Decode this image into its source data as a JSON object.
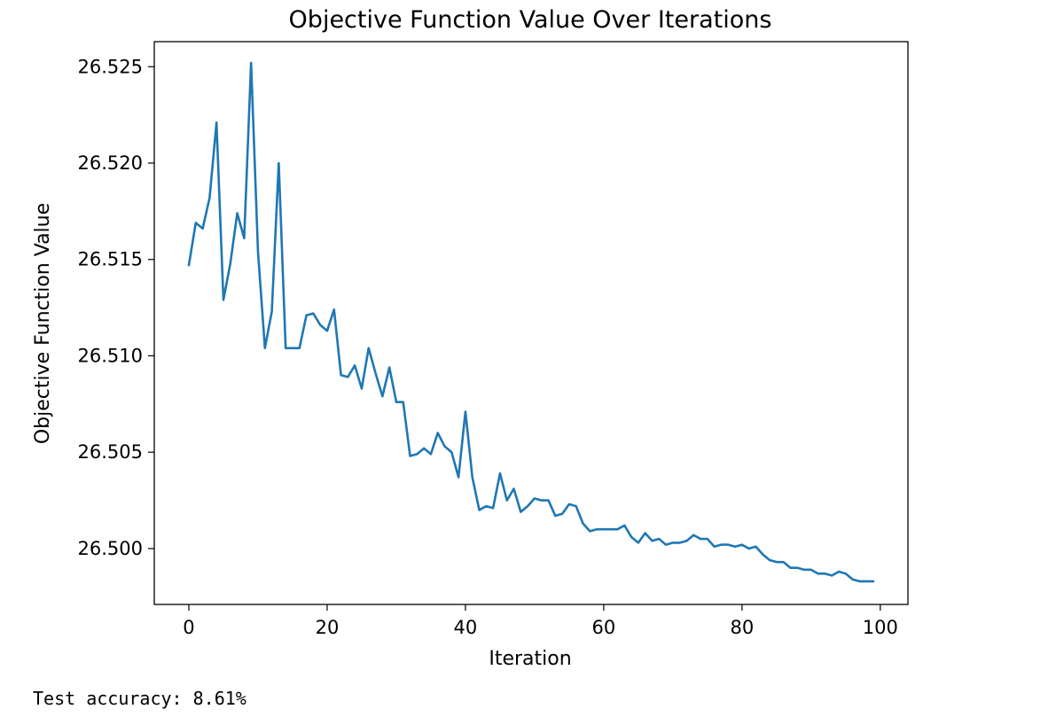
{
  "chart_data": {
    "type": "line",
    "title": "Objective Function Value Over Iterations",
    "xlabel": "Iteration",
    "ylabel": "Objective Function Value",
    "xlim": [
      -5,
      104
    ],
    "ylim": [
      26.4971,
      26.5263
    ],
    "xticks": [
      0,
      20,
      40,
      60,
      80,
      100
    ],
    "xtick_labels": [
      "0",
      "20",
      "40",
      "60",
      "80",
      "100"
    ],
    "yticks": [
      26.5,
      26.505,
      26.51,
      26.515,
      26.52,
      26.525
    ],
    "ytick_labels": [
      "26.500",
      "26.505",
      "26.510",
      "26.515",
      "26.520",
      "26.525"
    ],
    "grid": false,
    "line_color": "#1f77b4",
    "series": [
      {
        "x": [
          0,
          1,
          2,
          3,
          4,
          5,
          6,
          7,
          8,
          9,
          10,
          11,
          12,
          13,
          14,
          15,
          16,
          17,
          18,
          19,
          20,
          21,
          22,
          23,
          24,
          25,
          26,
          27,
          28,
          29,
          30,
          31,
          32,
          33,
          34,
          35,
          36,
          37,
          38,
          39,
          40,
          41,
          42,
          43,
          44,
          45,
          46,
          47,
          48,
          49,
          50,
          51,
          52,
          53,
          54,
          55,
          56,
          57,
          58,
          59,
          60,
          61,
          62,
          63,
          64,
          65,
          66,
          67,
          68,
          69,
          70,
          71,
          72,
          73,
          74,
          75,
          76,
          77,
          78,
          79,
          80,
          81,
          82,
          83,
          84,
          85,
          86,
          87,
          88,
          89,
          90,
          91,
          92,
          93,
          94,
          95,
          96,
          97,
          98,
          99
        ],
        "values": [
          26.5147,
          26.5169,
          26.5166,
          26.5182,
          26.5221,
          26.5129,
          26.5148,
          26.5174,
          26.5161,
          26.5252,
          26.5154,
          26.5104,
          26.5123,
          26.52,
          26.5104,
          26.5104,
          26.5104,
          26.5121,
          26.5122,
          26.5116,
          26.5113,
          26.5124,
          26.509,
          26.5089,
          26.5095,
          26.5083,
          26.5104,
          26.5091,
          26.5079,
          26.5094,
          26.5076,
          26.5076,
          26.5048,
          26.5049,
          26.5052,
          26.5049,
          26.506,
          26.5053,
          26.505,
          26.5037,
          26.5071,
          26.5037,
          26.502,
          26.5022,
          26.5021,
          26.5039,
          26.5025,
          26.5031,
          26.5019,
          26.5022,
          26.5026,
          26.5025,
          26.5025,
          26.5017,
          26.5018,
          26.5023,
          26.5022,
          26.5013,
          26.5009,
          26.501,
          26.501,
          26.501,
          26.501,
          26.5012,
          26.5006,
          26.5003,
          26.5008,
          26.5004,
          26.5005,
          26.5002,
          26.5003,
          26.5003,
          26.5004,
          26.5007,
          26.5005,
          26.5005,
          26.5001,
          26.5002,
          26.5002,
          26.5001,
          26.5002,
          26.5,
          26.5001,
          26.4997,
          26.4994,
          26.4993,
          26.4993,
          26.499,
          26.499,
          26.4989,
          26.4989,
          26.4987,
          26.4987,
          26.4986,
          26.4988,
          26.4987,
          26.4984,
          26.4983,
          26.4983,
          26.4983
        ]
      }
    ]
  },
  "output": {
    "accuracy_line": "Test accuracy: 8.61%"
  }
}
